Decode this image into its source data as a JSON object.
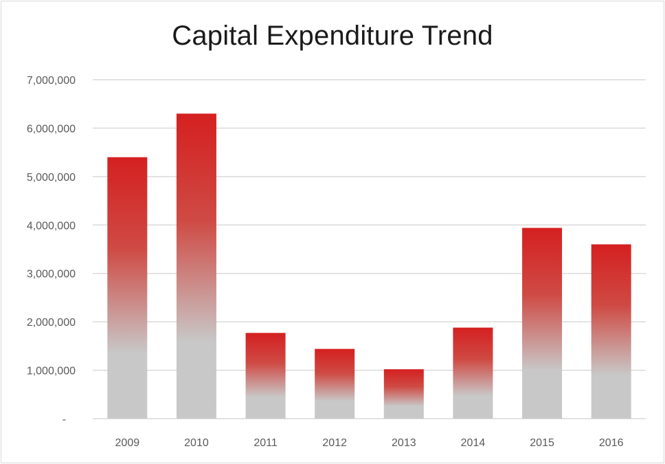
{
  "chart_data": {
    "type": "bar",
    "title": "Capital Expenditure Trend",
    "xlabel": "",
    "ylabel": "",
    "categories": [
      "2009",
      "2010",
      "2011",
      "2012",
      "2013",
      "2014",
      "2015",
      "2016"
    ],
    "values": [
      5400000,
      6300000,
      1770000,
      1440000,
      1020000,
      1880000,
      3940000,
      3600000
    ],
    "ylim": [
      0,
      7000000
    ],
    "y_ticks": [
      0,
      1000000,
      2000000,
      3000000,
      4000000,
      5000000,
      6000000,
      7000000
    ],
    "y_tick_labels": [
      "-",
      "1,000,000",
      "2,000,000",
      "3,000,000",
      "4,000,000",
      "5,000,000",
      "6,000,000",
      "7,000,000"
    ],
    "grid": true,
    "legend": "none",
    "colors": {
      "bar_top": "#d42020",
      "bar_bottom": "#c8c8c8",
      "gridline": "#d9d9d9",
      "axis_text": "#595959"
    }
  }
}
